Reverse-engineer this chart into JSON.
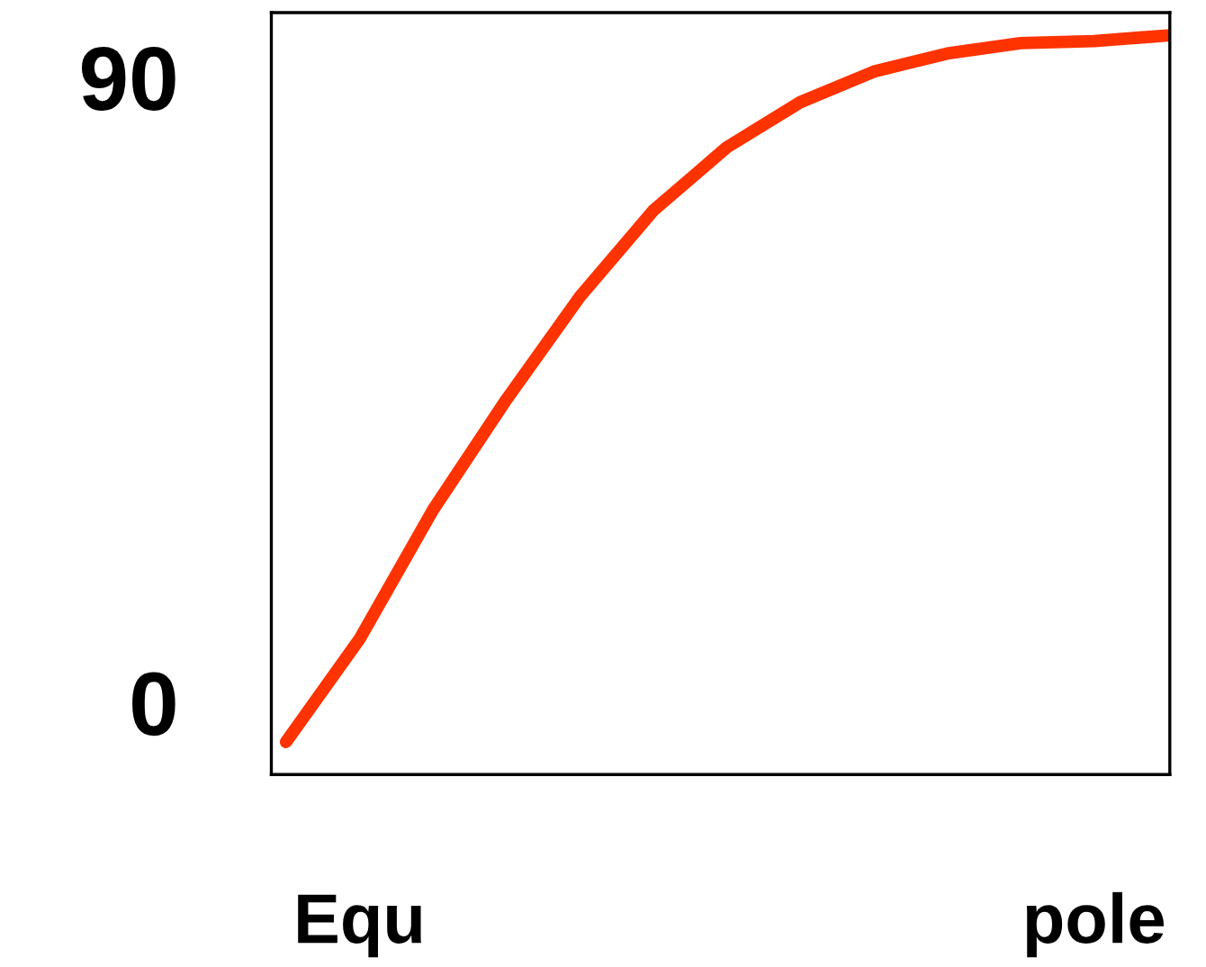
{
  "chart_data": {
    "type": "line",
    "categories": [
      null,
      "Equ",
      null,
      null,
      null,
      null,
      null,
      null,
      null,
      null,
      null,
      "pole",
      null
    ],
    "series": [
      {
        "color": "#ff3300",
        "values": [
          -5.7,
          9.1,
          27.7,
          43.6,
          58.4,
          70.8,
          79.9,
          86.4,
          90.8,
          93.4,
          94.9,
          95.2,
          96.0
        ]
      }
    ],
    "ylim": [
      -10.4,
      99.3
    ],
    "yticks": [
      0,
      90
    ],
    "grid": false,
    "legend": false,
    "marker": "none",
    "line_style": "solid"
  }
}
